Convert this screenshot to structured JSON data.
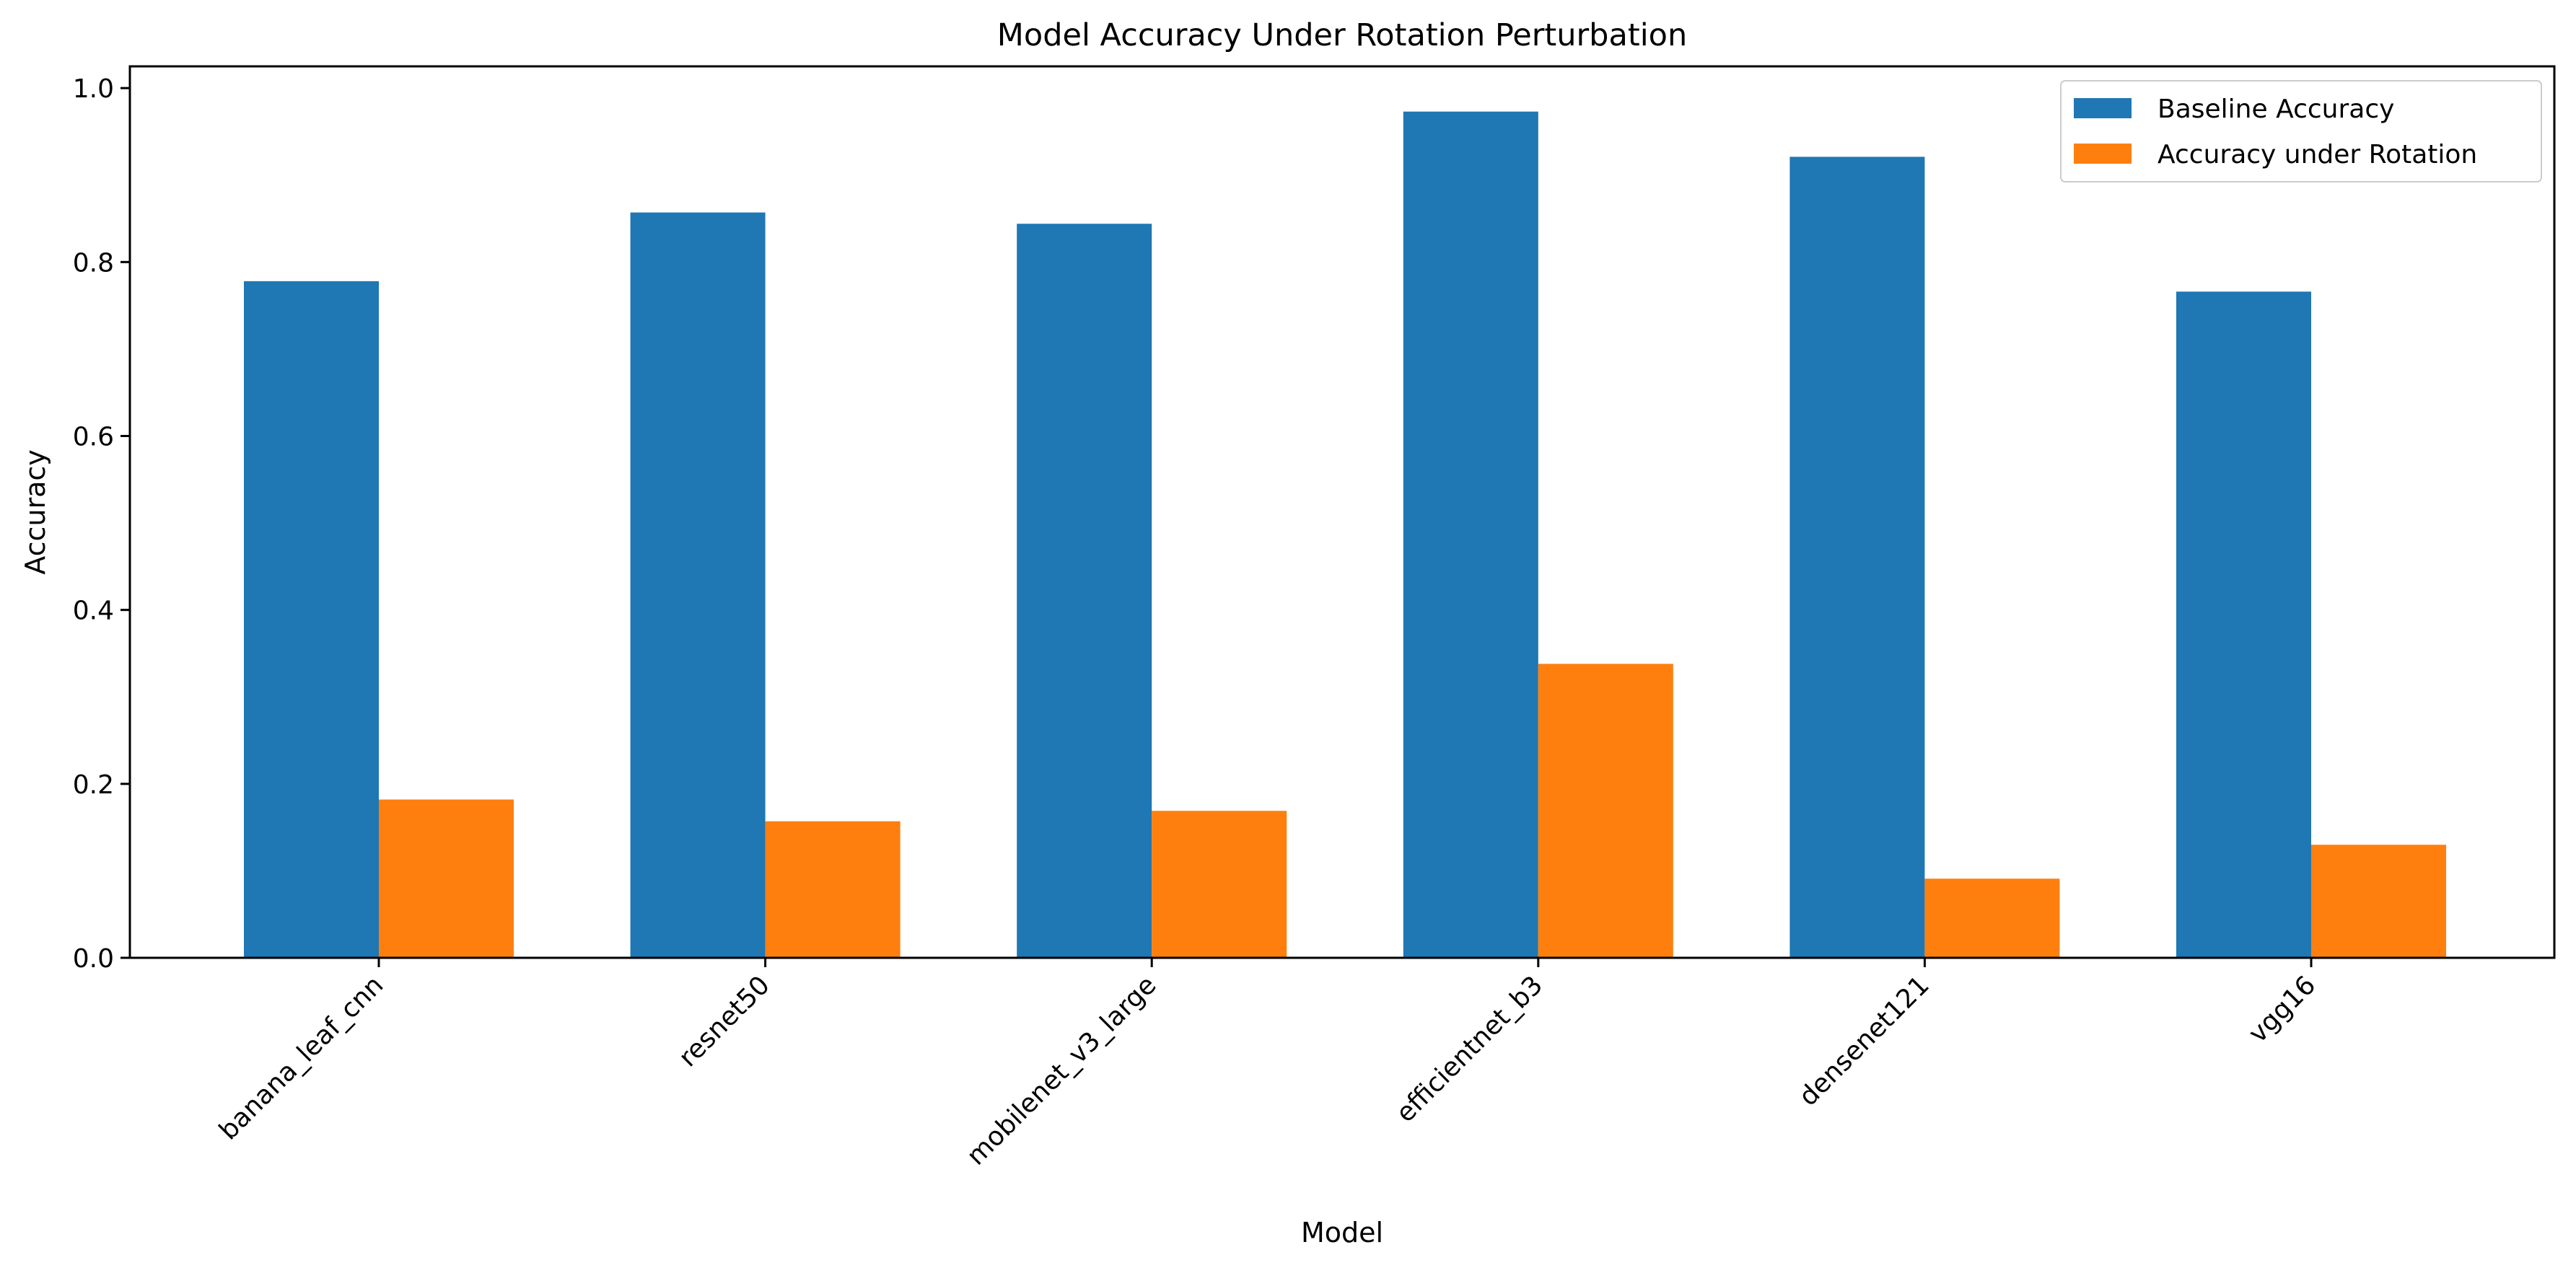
{
  "chart_data": {
    "type": "bar",
    "title": "Model Accuracy Under Rotation Perturbation",
    "xlabel": "Model",
    "ylabel": "Accuracy",
    "ylim": [
      0,
      1.025
    ],
    "yticks": [
      0.0,
      0.2,
      0.4,
      0.6,
      0.8,
      1.0
    ],
    "ytick_labels": [
      "0.0",
      "0.2",
      "0.4",
      "0.6",
      "0.8",
      "1.0"
    ],
    "categories": [
      "banana_leaf_cnn",
      "resnet50",
      "mobilenet_v3_large",
      "efficientnet_b3",
      "densenet121",
      "vgg16"
    ],
    "series": [
      {
        "name": "Baseline Accuracy",
        "color": "#1f77b4",
        "values": [
          0.778,
          0.857,
          0.844,
          0.973,
          0.921,
          0.766
        ]
      },
      {
        "name": "Accuracy under Rotation",
        "color": "#ff7f0e",
        "values": [
          0.182,
          0.157,
          0.169,
          0.338,
          0.091,
          0.13
        ]
      }
    ],
    "legend_position": "top-right",
    "grid": false
  }
}
